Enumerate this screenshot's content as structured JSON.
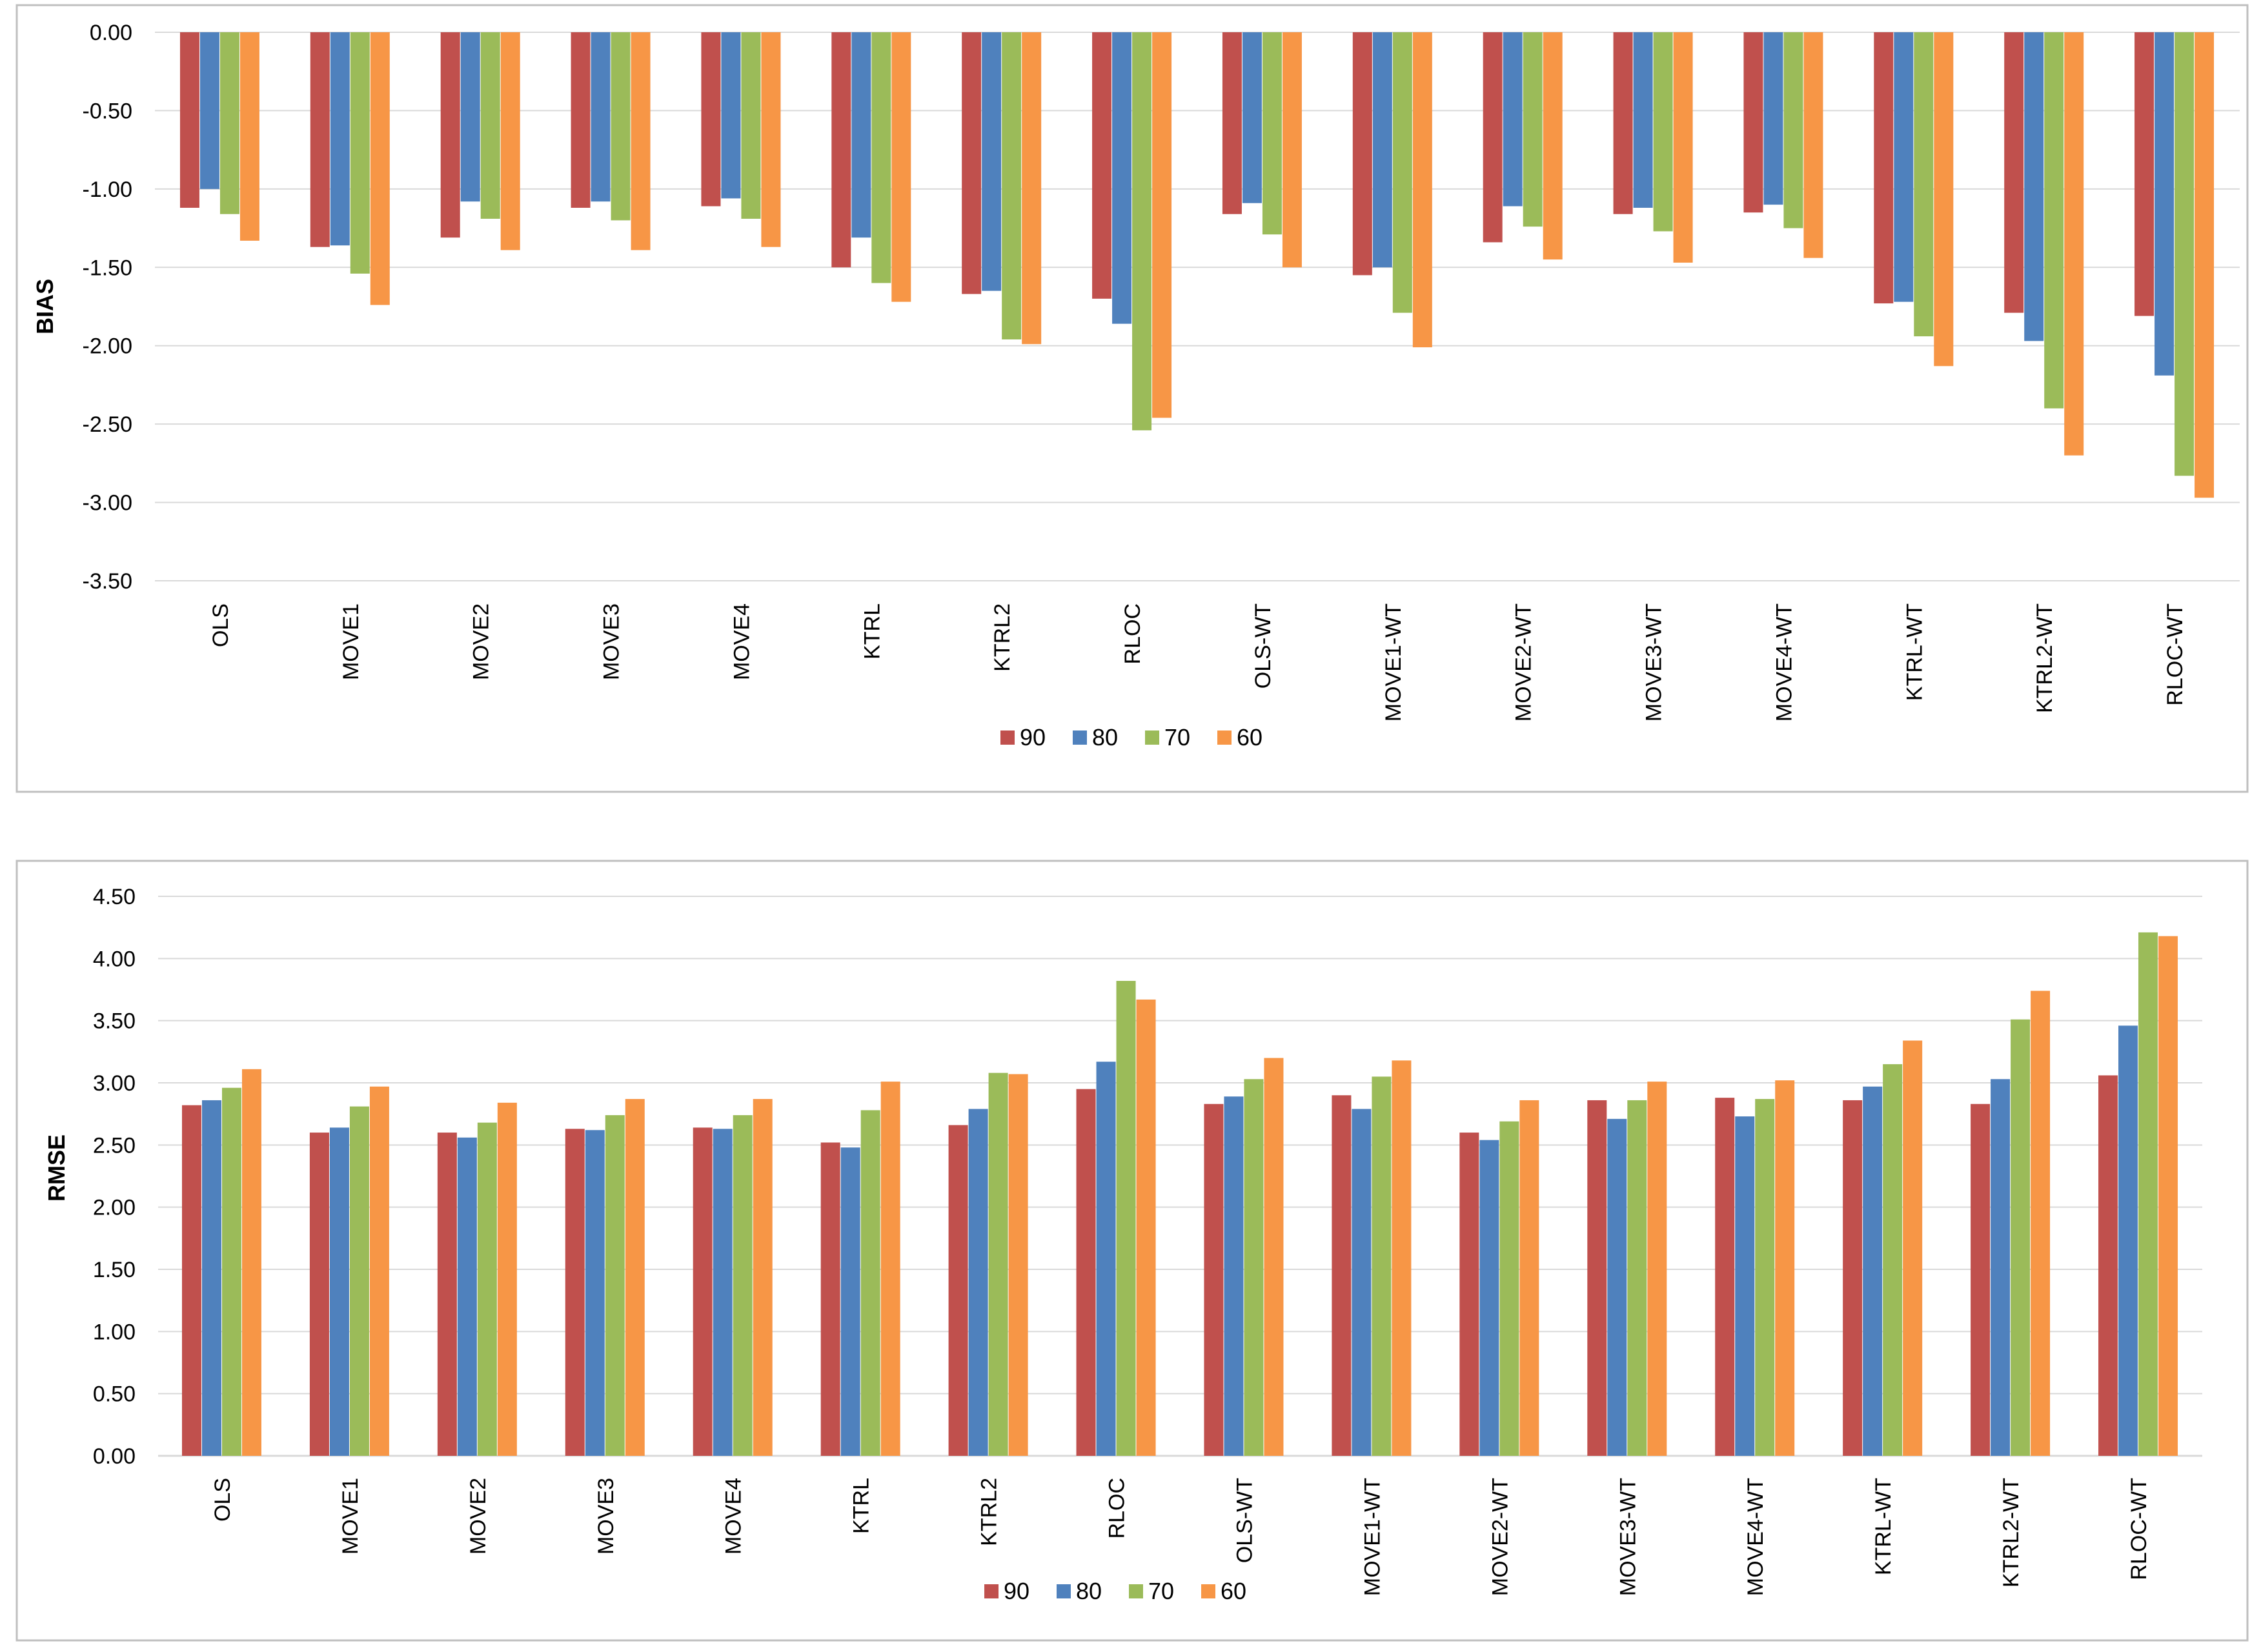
{
  "colors": {
    "s90": "#c0504d",
    "s80": "#4f81bd",
    "s70": "#9bbb59",
    "s60": "#f79646",
    "grid": "#d9d9d9",
    "frame": "#bfbfbf"
  },
  "chart_data": [
    {
      "type": "bar",
      "title": "",
      "xlabel": "",
      "ylabel": "BIAS",
      "ylim": [
        -3.5,
        0
      ],
      "yticks": [
        "0.00",
        "-0.50",
        "-1.00",
        "-1.50",
        "-2.00",
        "-2.50",
        "-3.00",
        "-3.50"
      ],
      "legend_position": "bottom",
      "categories": [
        "OLS",
        "MOVE1",
        "MOVE2",
        "MOVE3",
        "MOVE4",
        "KTRL",
        "KTRL2",
        "RLOC",
        "OLS-WT",
        "MOVE1-WT",
        "MOVE2-WT",
        "MOVE3-WT",
        "MOVE4-WT",
        "KTRL-WT",
        "KTRL2-WT",
        "RLOC-WT"
      ],
      "series": [
        {
          "name": "90",
          "values": [
            -1.12,
            -1.37,
            -1.31,
            -1.12,
            -1.11,
            -1.5,
            -1.67,
            -1.7,
            -1.16,
            -1.55,
            -1.34,
            -1.16,
            -1.15,
            -1.73,
            -1.79,
            -1.81
          ]
        },
        {
          "name": "80",
          "values": [
            -1.0,
            -1.36,
            -1.08,
            -1.08,
            -1.06,
            -1.31,
            -1.65,
            -1.86,
            -1.09,
            -1.5,
            -1.11,
            -1.12,
            -1.1,
            -1.72,
            -1.97,
            -2.19
          ]
        },
        {
          "name": "70",
          "values": [
            -1.16,
            -1.54,
            -1.19,
            -1.2,
            -1.19,
            -1.6,
            -1.96,
            -2.54,
            -1.29,
            -1.79,
            -1.24,
            -1.27,
            -1.25,
            -1.94,
            -2.4,
            -2.83
          ]
        },
        {
          "name": "60",
          "values": [
            -1.33,
            -1.74,
            -1.39,
            -1.39,
            -1.37,
            -1.72,
            -1.99,
            -2.46,
            -1.5,
            -2.01,
            -1.45,
            -1.47,
            -1.44,
            -2.13,
            -2.7,
            -2.97
          ]
        }
      ]
    },
    {
      "type": "bar",
      "title": "",
      "xlabel": "",
      "ylabel": "RMSE",
      "ylim": [
        0,
        4.5
      ],
      "yticks": [
        "4.50",
        "4.00",
        "3.50",
        "3.00",
        "2.50",
        "2.00",
        "1.50",
        "1.00",
        "0.50",
        "0.00"
      ],
      "legend_position": "bottom",
      "categories": [
        "OLS",
        "MOVE1",
        "MOVE2",
        "MOVE3",
        "MOVE4",
        "KTRL",
        "KTRL2",
        "RLOC",
        "OLS-WT",
        "MOVE1-WT",
        "MOVE2-WT",
        "MOVE3-WT",
        "MOVE4-WT",
        "KTRL-WT",
        "KTRL2-WT",
        "RLOC-WT"
      ],
      "series": [
        {
          "name": "90",
          "values": [
            2.82,
            2.6,
            2.6,
            2.63,
            2.64,
            2.52,
            2.66,
            2.95,
            2.83,
            2.9,
            2.6,
            2.86,
            2.88,
            2.86,
            2.83,
            3.06
          ]
        },
        {
          "name": "80",
          "values": [
            2.86,
            2.64,
            2.56,
            2.62,
            2.63,
            2.48,
            2.79,
            3.17,
            2.89,
            2.79,
            2.54,
            2.71,
            2.73,
            2.97,
            3.03,
            3.46
          ]
        },
        {
          "name": "70",
          "values": [
            2.96,
            2.81,
            2.68,
            2.74,
            2.74,
            2.78,
            3.08,
            3.82,
            3.03,
            3.05,
            2.69,
            2.86,
            2.87,
            3.15,
            3.51,
            4.21
          ]
        },
        {
          "name": "60",
          "values": [
            3.11,
            2.97,
            2.84,
            2.87,
            2.87,
            3.01,
            3.07,
            3.67,
            3.2,
            3.18,
            2.86,
            3.01,
            3.02,
            3.34,
            3.74,
            4.18
          ]
        }
      ]
    }
  ]
}
